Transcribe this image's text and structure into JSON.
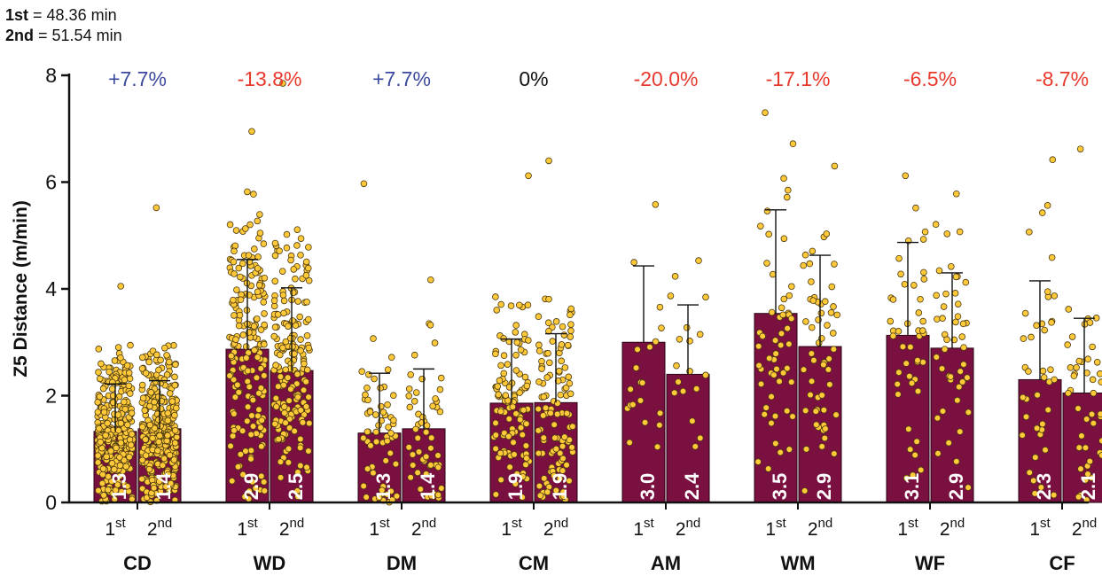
{
  "header": {
    "line1": {
      "label": "1st",
      "text": " = 48.36 min"
    },
    "line2": {
      "label": "2nd",
      "text": " = 51.54 min"
    }
  },
  "colors": {
    "bar": "#7a1040",
    "point_fill": "#ffc93a",
    "point_stroke": "#4a3a10",
    "positive_change": "#3b4aa0",
    "negative_change": "#e8392d",
    "neutral_change": "#111111"
  },
  "chart_data": {
    "type": "bar",
    "ylabel": "Z5 Distance (m/min)",
    "ylim": [
      0,
      8
    ],
    "yticks": [
      "0",
      "2",
      "4",
      "6",
      "8"
    ],
    "grid": false,
    "sub_labels": [
      {
        "base": "1",
        "sup": "st"
      },
      {
        "base": "2",
        "sup": "nd"
      }
    ],
    "series": [
      {
        "name": "1st"
      },
      {
        "name": "2nd"
      }
    ],
    "groups": [
      {
        "category": "CD",
        "change": "+7.7%",
        "change_sign": "positive",
        "bars": [
          {
            "value": 1.33,
            "label": "1.3",
            "sd_upper": 2.22,
            "n": 320,
            "max_point": 4.05
          },
          {
            "value": 1.38,
            "label": "1.4",
            "sd_upper": 2.28,
            "n": 320,
            "max_point": 5.52
          }
        ]
      },
      {
        "category": "WD",
        "change": "-13.8%",
        "change_sign": "negative",
        "bars": [
          {
            "value": 2.87,
            "label": "2.9",
            "sd_upper": 4.55,
            "n": 190,
            "max_point": 6.95
          },
          {
            "value": 2.47,
            "label": "2.5",
            "sd_upper": 4.02,
            "n": 190,
            "max_point": 7.85
          }
        ]
      },
      {
        "category": "DM",
        "change": "+7.7%",
        "change_sign": "positive",
        "bars": [
          {
            "value": 1.3,
            "label": "1.3",
            "sd_upper": 2.42,
            "n": 60,
            "max_point": 5.97
          },
          {
            "value": 1.38,
            "label": "1.4",
            "sd_upper": 2.5,
            "n": 55,
            "max_point": 4.17
          }
        ]
      },
      {
        "category": "CM",
        "change": "0%",
        "change_sign": "neutral",
        "bars": [
          {
            "value": 1.86,
            "label": "1.9",
            "sd_upper": 3.06,
            "n": 110,
            "max_point": 6.12
          },
          {
            "value": 1.87,
            "label": "1.9",
            "sd_upper": 3.16,
            "n": 110,
            "max_point": 6.4
          }
        ]
      },
      {
        "category": "AM",
        "change": "-20.0%",
        "change_sign": "negative",
        "bars": [
          {
            "value": 3.0,
            "label": "3.0",
            "sd_upper": 4.43,
            "n": 20,
            "max_point": 5.58
          },
          {
            "value": 2.4,
            "label": "2.4",
            "sd_upper": 3.7,
            "n": 18,
            "max_point": 4.53
          }
        ]
      },
      {
        "category": "WM",
        "change": "-17.1%",
        "change_sign": "negative",
        "bars": [
          {
            "value": 3.54,
            "label": "3.5",
            "sd_upper": 5.48,
            "n": 55,
            "max_point": 7.3
          },
          {
            "value": 2.92,
            "label": "2.9",
            "sd_upper": 4.63,
            "n": 55,
            "max_point": 6.3
          }
        ]
      },
      {
        "category": "WF",
        "change": "-6.5%",
        "change_sign": "negative",
        "bars": [
          {
            "value": 3.13,
            "label": "3.1",
            "sd_upper": 4.87,
            "n": 45,
            "max_point": 6.12
          },
          {
            "value": 2.89,
            "label": "2.9",
            "sd_upper": 4.3,
            "n": 45,
            "max_point": 5.78
          }
        ]
      },
      {
        "category": "CF",
        "change": "-8.7%",
        "change_sign": "negative",
        "bars": [
          {
            "value": 2.3,
            "label": "2.3",
            "sd_upper": 4.15,
            "n": 40,
            "max_point": 6.42
          },
          {
            "value": 2.05,
            "label": "2.1",
            "sd_upper": 3.45,
            "n": 45,
            "max_point": 6.62
          }
        ]
      }
    ]
  }
}
